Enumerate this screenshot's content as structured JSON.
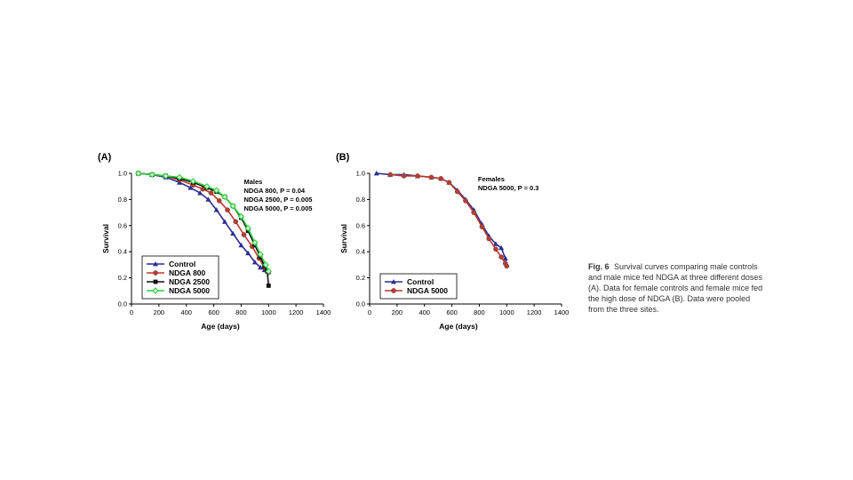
{
  "chart_data": [
    {
      "type": "line",
      "panel_label": "(A)",
      "xlabel": "Age (days)",
      "ylabel": "Survival",
      "xlim": [
        0,
        1400
      ],
      "ylim": [
        0.0,
        1.0
      ],
      "xticks": [
        "0",
        "200",
        "400",
        "600",
        "800",
        "1000",
        "1200",
        "1400"
      ],
      "yticks": [
        "0.0",
        "0.2",
        "0.4",
        "0.6",
        "0.8",
        "1.0"
      ],
      "annotation": [
        "Males",
        "NDGA 800, P = 0.04",
        "NDGA 2500, P = 0.005",
        "NDGA 5000, P = 0.005"
      ],
      "legend_position": "lower-left",
      "series": [
        {
          "name": "Control",
          "color": "#2b2d8e",
          "marker": "triangle",
          "x": [
            50,
            150,
            250,
            350,
            430,
            500,
            560,
            620,
            680,
            740,
            800,
            850,
            900,
            940,
            970,
            1000
          ],
          "y": [
            1.0,
            0.99,
            0.97,
            0.93,
            0.89,
            0.85,
            0.8,
            0.72,
            0.63,
            0.54,
            0.45,
            0.39,
            0.32,
            0.28,
            0.26,
            0.25
          ]
        },
        {
          "name": "NDGA 800",
          "color": "#c0392b",
          "marker": "circle",
          "x": [
            50,
            150,
            250,
            350,
            450,
            520,
            580,
            640,
            700,
            760,
            820,
            880,
            930,
            970,
            1000
          ],
          "y": [
            1.0,
            0.99,
            0.98,
            0.95,
            0.91,
            0.88,
            0.85,
            0.79,
            0.72,
            0.63,
            0.53,
            0.44,
            0.35,
            0.28,
            0.24
          ]
        },
        {
          "name": "NDGA 2500",
          "color": "#111111",
          "marker": "square",
          "x": [
            50,
            150,
            250,
            350,
            450,
            550,
            620,
            680,
            740,
            800,
            850,
            900,
            940,
            970,
            990,
            1000
          ],
          "y": [
            1.0,
            0.99,
            0.98,
            0.96,
            0.93,
            0.89,
            0.86,
            0.82,
            0.75,
            0.66,
            0.56,
            0.45,
            0.36,
            0.29,
            0.25,
            0.14
          ]
        },
        {
          "name": "NDGA 5000",
          "color": "#2ecc40",
          "marker": "diamond",
          "x": [
            50,
            150,
            250,
            350,
            450,
            550,
            620,
            680,
            740,
            800,
            850,
            900,
            940,
            980,
            1000
          ],
          "y": [
            1.0,
            0.99,
            0.98,
            0.97,
            0.94,
            0.9,
            0.87,
            0.82,
            0.75,
            0.67,
            0.58,
            0.47,
            0.38,
            0.3,
            0.25
          ]
        }
      ]
    },
    {
      "type": "line",
      "panel_label": "(B)",
      "xlabel": "Age (days)",
      "ylabel": "Survival",
      "xlim": [
        0,
        1400
      ],
      "ylim": [
        0.0,
        1.0
      ],
      "xticks": [
        "0",
        "200",
        "400",
        "600",
        "800",
        "1000",
        "1200",
        "1400"
      ],
      "yticks": [
        "0.0",
        "0.2",
        "0.4",
        "0.6",
        "0.8",
        "1.0"
      ],
      "annotation": [
        "Females",
        "NDGA 5000, P = 0.3"
      ],
      "legend_position": "lower-left",
      "series": [
        {
          "name": "Control",
          "color": "#2b2d8e",
          "marker": "triangle",
          "x": [
            50,
            150,
            250,
            350,
            450,
            520,
            580,
            640,
            700,
            760,
            820,
            870,
            920,
            960,
            990,
            1000
          ],
          "y": [
            1.0,
            0.99,
            0.99,
            0.98,
            0.97,
            0.96,
            0.93,
            0.87,
            0.8,
            0.72,
            0.61,
            0.52,
            0.46,
            0.43,
            0.35,
            0.3
          ]
        },
        {
          "name": "NDGA 5000",
          "color": "#c0392b",
          "marker": "circle",
          "x": [
            150,
            250,
            350,
            450,
            520,
            580,
            640,
            700,
            760,
            820,
            870,
            920,
            960,
            990,
            1000
          ],
          "y": [
            0.99,
            0.98,
            0.98,
            0.97,
            0.96,
            0.93,
            0.86,
            0.79,
            0.7,
            0.59,
            0.5,
            0.42,
            0.36,
            0.31,
            0.29
          ]
        }
      ]
    }
  ],
  "caption": {
    "label": "Fig. 6",
    "text": "Survival curves comparing male controls and male mice fed NDGA at three different doses (A). Data for female controls and female mice fed the high dose of NDGA (B). Data were pooled from the three sites."
  }
}
